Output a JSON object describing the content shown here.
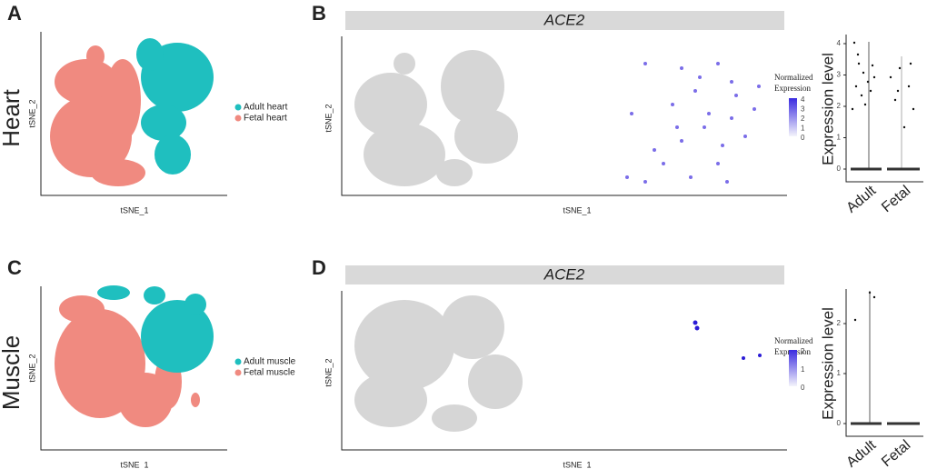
{
  "panels": [
    {
      "label": "A",
      "row_label": "Heart",
      "x_label": "tSNE_1",
      "y_label": "tSNE_2",
      "legend": [
        "Adult heart",
        "Fetal heart"
      ]
    },
    {
      "label": "B",
      "gene": "ACE2",
      "x_label": "tSNE_1",
      "y_label": "tSNE_2",
      "colorbar_title": [
        "Normalized",
        "Expression"
      ],
      "colorbar_ticks": [
        4,
        3,
        2,
        1,
        0
      ],
      "violin": {
        "y_label": "Expression level",
        "yticks": [
          0,
          1,
          2,
          3,
          4
        ],
        "categories": [
          "Adult",
          "Fetal"
        ]
      }
    },
    {
      "label": "C",
      "row_label": "Muscle",
      "x_label": "tSNE_1",
      "y_label": "tSNE_2",
      "legend": [
        "Adult muscle",
        "Fetal muscle"
      ]
    },
    {
      "label": "D",
      "gene": "ACE2",
      "x_label": "tSNE_1",
      "y_label": "tSNE_2",
      "colorbar_title": [
        "Normalized",
        "Expression"
      ],
      "colorbar_ticks": [
        2,
        1,
        0
      ],
      "violin": {
        "y_label": "Expression level",
        "yticks": [
          0,
          1,
          2
        ],
        "categories": [
          "Adult",
          "Fetal"
        ]
      }
    }
  ]
}
